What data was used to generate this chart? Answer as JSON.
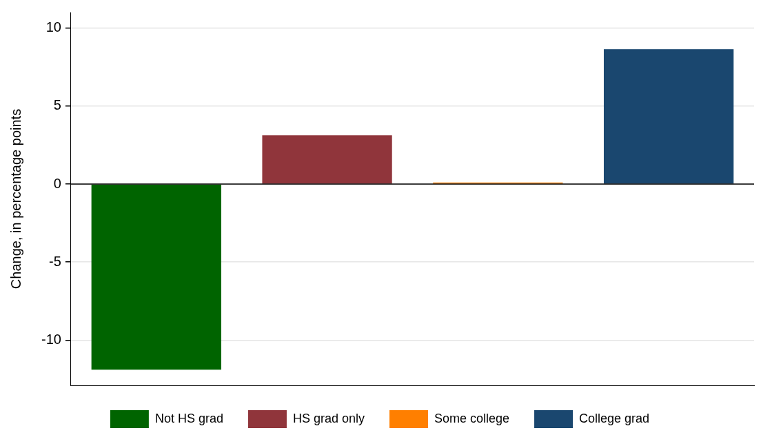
{
  "chart_data": {
    "type": "bar",
    "ylabel": "Change, in percentage points",
    "categories": [
      null,
      null,
      null,
      null
    ],
    "series": [
      {
        "name": "Not HS grad",
        "color": "#006400",
        "values": [
          -11.9,
          null,
          null,
          null
        ]
      },
      {
        "name": "HS grad only",
        "color": "#90353b",
        "values": [
          null,
          3.12,
          null,
          null
        ]
      },
      {
        "name": "Some college",
        "color": "#ff7f00",
        "values": [
          null,
          null,
          0.1,
          null
        ]
      },
      {
        "name": "College grad",
        "color": "#1a476f",
        "values": [
          null,
          null,
          null,
          8.65
        ]
      }
    ],
    "ylim": [
      -12.9,
      11
    ],
    "yticks": [
      -10,
      -5,
      0,
      5,
      10
    ],
    "grid": "y",
    "legend": "bottom",
    "ref_lines": [
      {
        "axis": "y",
        "value": 0,
        "color": "#000000"
      }
    ]
  }
}
